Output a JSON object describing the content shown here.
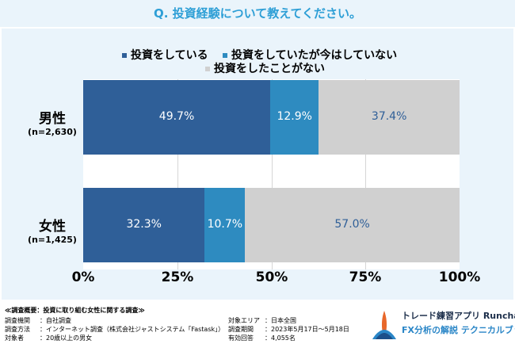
{
  "title": "Q. 投資経験について教えてください。",
  "chart_data": {
    "type": "bar",
    "orientation": "horizontal-stacked-100",
    "categories": [
      {
        "name": "男性",
        "sub": "(n=2,630)"
      },
      {
        "name": "女性",
        "sub": "(n=1,425)"
      }
    ],
    "series": [
      {
        "name": "投資をしている",
        "values": [
          49.7,
          32.3
        ],
        "labels": [
          "49.7%",
          "32.3%"
        ],
        "color": "#2f5f98",
        "label_color": "#ffffff"
      },
      {
        "name": "投資をしていたが今はしていない",
        "values": [
          12.9,
          10.7
        ],
        "labels": [
          "12.9%",
          "10.7%"
        ],
        "color": "#2e8bc0",
        "label_color": "#ffffff"
      },
      {
        "name": "投資をしたことがない",
        "values": [
          37.4,
          57.0
        ],
        "labels": [
          "37.4%",
          "57.0%"
        ],
        "color": "#d0d0d0",
        "label_color": "#2f5f98"
      }
    ],
    "xlim": [
      0,
      100
    ],
    "x_ticks": [
      "0%",
      "25%",
      "50%",
      "75%",
      "100%"
    ],
    "legend_position": "top"
  },
  "survey": {
    "heading": "≪調査概要：投資に取り組む女性に関する調査≫",
    "rows_left": [
      {
        "label": "調査機関",
        "value": "：自社調査"
      },
      {
        "label": "調査方法",
        "value": "：インターネット調査（株式会社ジャストシステム「Fastask」）"
      },
      {
        "label": "対象者",
        "value": "：20歳以上の男女"
      }
    ],
    "rows_right": [
      {
        "label": "対象エリア",
        "value": "：日本全国"
      },
      {
        "label": "調査期間",
        "value": "：2023年5月17日～5月18日"
      },
      {
        "label": "有効回答",
        "value": "：4,055名"
      }
    ]
  },
  "logo": {
    "line1": "トレード練習アプリ Runcha",
    "line2": "FX分析の解説 テクニカルブック"
  }
}
